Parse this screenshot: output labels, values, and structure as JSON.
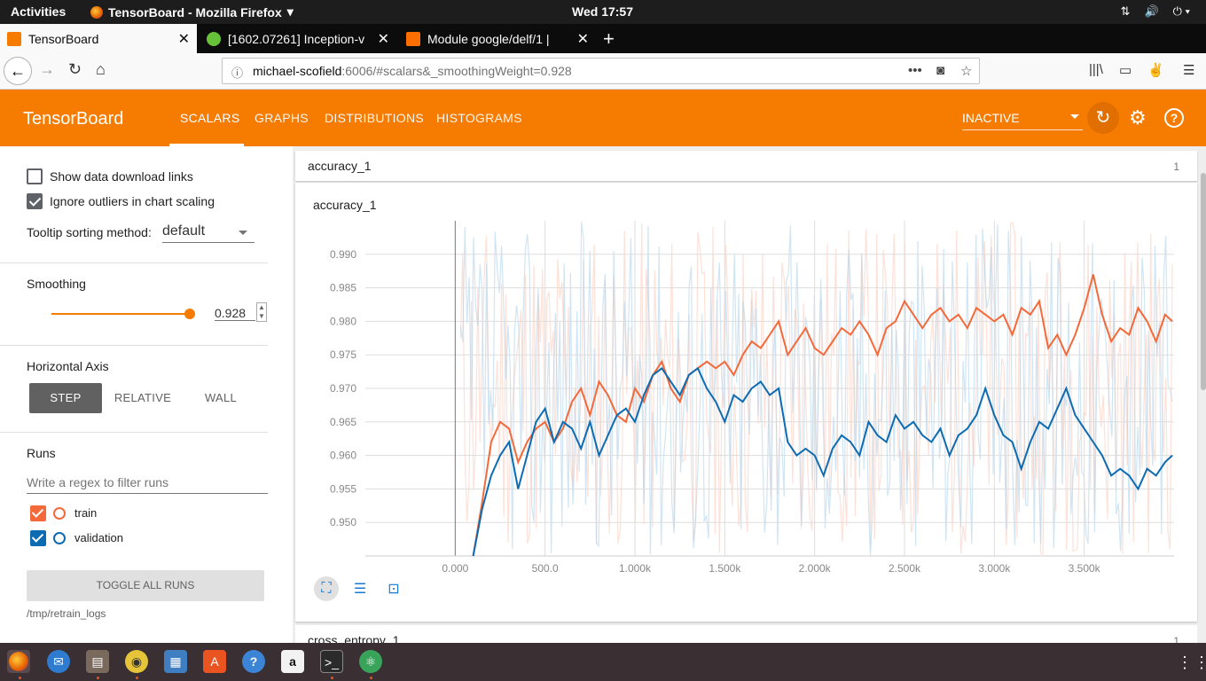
{
  "topbar": {
    "activities": "Activities",
    "app_title": "TensorBoard - Mozilla Firefox",
    "clock": "Wed 17:57"
  },
  "tabs": [
    {
      "title": "TensorBoard",
      "active": true,
      "favicon_color": "#f57c00"
    },
    {
      "title": "[1602.07261] Inception-v",
      "active": false,
      "favicon_color": "#67c23a"
    },
    {
      "title": "Module google/delf/1 |",
      "active": false,
      "favicon_color": "#ff6f00"
    }
  ],
  "navbar": {
    "url_host": "michael-scofield",
    "url_rest": ":6006/#scalars&_smoothingWeight=0.928"
  },
  "header": {
    "brand": "TensorBoard",
    "nav": [
      "SCALARS",
      "GRAPHS",
      "DISTRIBUTIONS",
      "HISTOGRAMS"
    ],
    "status": "INACTIVE",
    "accent": "#f57c00"
  },
  "sidebar": {
    "show_download": "Show data download links",
    "ignore_outliers": "Ignore outliers in chart scaling",
    "tooltip_label": "Tooltip sorting method:",
    "tooltip_value": "default",
    "smoothing_label": "Smoothing",
    "smoothing_value": "0.928",
    "smoothing_fraction": 0.928,
    "haxis_label": "Horizontal Axis",
    "haxis_options": [
      "STEP",
      "RELATIVE",
      "WALL"
    ],
    "runs_label": "Runs",
    "regex_placeholder": "Write a regex to filter runs",
    "runs": [
      {
        "name": "train",
        "color": "#f4693a",
        "checked": true
      },
      {
        "name": "validation",
        "color": "#0d6bb2",
        "checked": true
      }
    ],
    "toggle_all": "TOGGLE ALL RUNS",
    "logdir": "/tmp/retrain_logs"
  },
  "main": {
    "group_name": "accuracy_1",
    "group_count": "1",
    "next_group_name": "cross_entropy_1",
    "next_group_count": "1"
  },
  "chart_data": {
    "type": "line",
    "title": "accuracy_1",
    "xlabel": "",
    "ylabel": "",
    "xlim": [
      -500,
      4000
    ],
    "ylim": [
      0.945,
      0.995
    ],
    "x_ticks": [
      "0.000",
      "500.0",
      "1.000k",
      "1.500k",
      "2.000k",
      "2.500k",
      "3.000k",
      "3.500k"
    ],
    "y_ticks": [
      "0.990",
      "0.985",
      "0.980",
      "0.975",
      "0.970",
      "0.965",
      "0.960",
      "0.955",
      "0.950"
    ],
    "grid": true,
    "series": [
      {
        "name": "train",
        "color": "#f4693a",
        "x": [
          100,
          150,
          200,
          250,
          300,
          350,
          400,
          450,
          500,
          550,
          600,
          650,
          700,
          750,
          800,
          850,
          900,
          950,
          1000,
          1050,
          1100,
          1150,
          1200,
          1250,
          1300,
          1350,
          1400,
          1450,
          1500,
          1550,
          1600,
          1650,
          1700,
          1750,
          1800,
          1850,
          1900,
          1950,
          2000,
          2050,
          2100,
          2150,
          2200,
          2250,
          2300,
          2350,
          2400,
          2450,
          2500,
          2550,
          2600,
          2650,
          2700,
          2750,
          2800,
          2850,
          2900,
          2950,
          3000,
          3050,
          3100,
          3150,
          3200,
          3250,
          3300,
          3350,
          3400,
          3450,
          3500,
          3550,
          3600,
          3650,
          3700,
          3750,
          3800,
          3850,
          3900,
          3950,
          3990
        ],
        "y": [
          0.945,
          0.953,
          0.962,
          0.965,
          0.964,
          0.959,
          0.962,
          0.964,
          0.965,
          0.962,
          0.964,
          0.968,
          0.97,
          0.966,
          0.971,
          0.969,
          0.966,
          0.965,
          0.97,
          0.968,
          0.972,
          0.974,
          0.97,
          0.968,
          0.972,
          0.973,
          0.974,
          0.973,
          0.974,
          0.972,
          0.975,
          0.977,
          0.976,
          0.978,
          0.98,
          0.975,
          0.977,
          0.979,
          0.976,
          0.975,
          0.977,
          0.979,
          0.978,
          0.98,
          0.978,
          0.975,
          0.979,
          0.98,
          0.983,
          0.981,
          0.979,
          0.981,
          0.982,
          0.98,
          0.981,
          0.979,
          0.982,
          0.981,
          0.98,
          0.981,
          0.978,
          0.982,
          0.981,
          0.983,
          0.976,
          0.978,
          0.975,
          0.978,
          0.982,
          0.987,
          0.981,
          0.977,
          0.979,
          0.978,
          0.982,
          0.98,
          0.977,
          0.981,
          0.98
        ]
      },
      {
        "name": "validation",
        "color": "#0d6bb2",
        "x": [
          100,
          150,
          200,
          250,
          300,
          350,
          400,
          450,
          500,
          550,
          600,
          650,
          700,
          750,
          800,
          850,
          900,
          950,
          1000,
          1050,
          1100,
          1150,
          1200,
          1250,
          1300,
          1350,
          1400,
          1450,
          1500,
          1550,
          1600,
          1650,
          1700,
          1750,
          1800,
          1850,
          1900,
          1950,
          2000,
          2050,
          2100,
          2150,
          2200,
          2250,
          2300,
          2350,
          2400,
          2450,
          2500,
          2550,
          2600,
          2650,
          2700,
          2750,
          2800,
          2850,
          2900,
          2950,
          3000,
          3050,
          3100,
          3150,
          3200,
          3250,
          3300,
          3350,
          3400,
          3450,
          3500,
          3550,
          3600,
          3650,
          3700,
          3750,
          3800,
          3850,
          3900,
          3950,
          3990
        ],
        "y": [
          0.945,
          0.952,
          0.957,
          0.96,
          0.962,
          0.955,
          0.96,
          0.965,
          0.967,
          0.962,
          0.965,
          0.964,
          0.961,
          0.965,
          0.96,
          0.963,
          0.966,
          0.967,
          0.965,
          0.969,
          0.972,
          0.973,
          0.971,
          0.969,
          0.972,
          0.973,
          0.97,
          0.968,
          0.965,
          0.969,
          0.968,
          0.97,
          0.971,
          0.969,
          0.97,
          0.962,
          0.96,
          0.961,
          0.96,
          0.957,
          0.961,
          0.963,
          0.962,
          0.96,
          0.965,
          0.963,
          0.962,
          0.966,
          0.964,
          0.965,
          0.963,
          0.962,
          0.964,
          0.96,
          0.963,
          0.964,
          0.966,
          0.97,
          0.966,
          0.963,
          0.962,
          0.958,
          0.962,
          0.965,
          0.964,
          0.967,
          0.97,
          0.966,
          0.964,
          0.962,
          0.96,
          0.957,
          0.958,
          0.957,
          0.955,
          0.958,
          0.957,
          0.959,
          0.96
        ]
      }
    ]
  }
}
